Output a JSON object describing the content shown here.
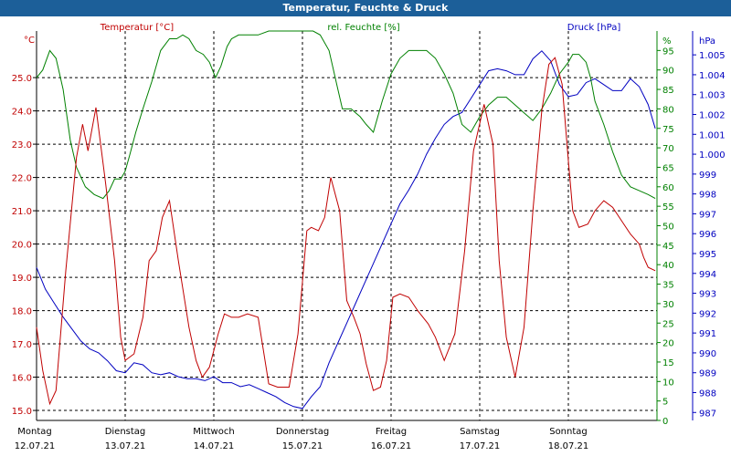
{
  "window": {
    "title": "Temperatur, Feuchte & Druck"
  },
  "chart_data": {
    "type": "line",
    "title": "Temperatur, Feuchte & Druck",
    "grid": true,
    "axes": {
      "temperature": {
        "label": "Temperatur [°C]",
        "unit": "°C",
        "range": [
          14.7,
          26.4
        ],
        "ticks": [
          "15.0",
          "16.0",
          "17.0",
          "18.0",
          "19.0",
          "20.0",
          "21.0",
          "22.0",
          "23.0",
          "24.0",
          "25.0"
        ],
        "color": "#c00000"
      },
      "humidity": {
        "label": "rel. Feuchte [%]",
        "unit": "%",
        "range": [
          0,
          100
        ],
        "ticks": [
          "0",
          "5",
          "10",
          "15",
          "20",
          "25",
          "30",
          "35",
          "40",
          "45",
          "50",
          "55",
          "60",
          "65",
          "70",
          "75",
          "80",
          "85",
          "90",
          "95"
        ],
        "top_tick": "%",
        "color": "#008000"
      },
      "pressure": {
        "label": "Druck [hPa]",
        "unit": "hPa",
        "range": [
          986.6,
          1006.2
        ],
        "ticks": [
          "987",
          "988",
          "989",
          "990",
          "991",
          "992",
          "993",
          "994",
          "995",
          "996",
          "997",
          "998",
          "999",
          "1.000",
          "1.001",
          "1.002",
          "1.003",
          "1.004",
          "1.005"
        ],
        "top_tick": "hPa",
        "color": "#0000c0"
      }
    },
    "x_range": [
      0,
      7
    ],
    "x_ticks": [
      {
        "day": "Montag",
        "date": "12.07.21"
      },
      {
        "day": "Dienstag",
        "date": "13.07.21"
      },
      {
        "day": "Mittwoch",
        "date": "14.07.21"
      },
      {
        "day": "Donnerstag",
        "date": "15.07.21"
      },
      {
        "day": "Freitag",
        "date": "16.07.21"
      },
      {
        "day": "Samstag",
        "date": "17.07.21"
      },
      {
        "day": "Sonntag",
        "date": "18.07.21"
      }
    ],
    "series": [
      {
        "name": "Temperatur [°C]",
        "axis": "temperature",
        "color": "#c00000",
        "x": [
          0,
          0.07,
          0.15,
          0.22,
          0.33,
          0.45,
          0.52,
          0.58,
          0.67,
          0.78,
          0.88,
          0.95,
          1.0,
          1.1,
          1.2,
          1.27,
          1.35,
          1.42,
          1.5,
          1.6,
          1.72,
          1.8,
          1.87,
          1.95,
          2.05,
          2.12,
          2.2,
          2.28,
          2.38,
          2.5,
          2.62,
          2.72,
          2.85,
          2.95,
          3.05,
          3.1,
          3.18,
          3.25,
          3.32,
          3.42,
          3.5,
          3.58,
          3.65,
          3.72,
          3.8,
          3.88,
          3.95,
          4.02,
          4.1,
          4.2,
          4.3,
          4.42,
          4.5,
          4.6,
          4.72,
          4.83,
          4.93,
          5.05,
          5.15,
          5.22,
          5.3,
          5.4,
          5.5,
          5.6,
          5.7,
          5.78,
          5.85,
          5.93,
          6.0,
          6.05,
          6.12,
          6.22,
          6.3,
          6.4,
          6.5,
          6.6,
          6.7,
          6.8,
          6.85,
          6.9,
          6.98
        ],
        "values": [
          17.5,
          16.2,
          15.2,
          15.6,
          19.2,
          22.6,
          23.6,
          22.8,
          24.1,
          21.8,
          19.5,
          17.2,
          16.5,
          16.7,
          17.8,
          19.5,
          19.8,
          20.8,
          21.3,
          19.5,
          17.5,
          16.5,
          16.0,
          16.3,
          17.3,
          17.9,
          17.8,
          17.8,
          17.9,
          17.8,
          15.8,
          15.7,
          15.7,
          17.3,
          20.4,
          20.5,
          20.4,
          20.8,
          22.0,
          21.0,
          18.3,
          17.8,
          17.3,
          16.4,
          15.6,
          15.7,
          16.5,
          18.4,
          18.5,
          18.4,
          18.0,
          17.6,
          17.2,
          16.5,
          17.3,
          19.8,
          22.8,
          24.2,
          23.0,
          19.5,
          17.2,
          16.0,
          17.5,
          21.0,
          24.0,
          25.4,
          25.6,
          24.8,
          22.5,
          21.0,
          20.5,
          20.6,
          21.0,
          21.3,
          21.1,
          20.7,
          20.3,
          20.0,
          19.6,
          19.3,
          19.2
        ]
      },
      {
        "name": "rel. Feuchte [%]",
        "axis": "humidity",
        "color": "#008000",
        "x": [
          0,
          0.07,
          0.15,
          0.22,
          0.3,
          0.38,
          0.45,
          0.55,
          0.65,
          0.75,
          0.82,
          0.88,
          0.95,
          1.0,
          1.05,
          1.12,
          1.2,
          1.3,
          1.4,
          1.5,
          1.58,
          1.65,
          1.72,
          1.8,
          1.88,
          1.95,
          2.02,
          2.08,
          2.15,
          2.2,
          2.28,
          2.38,
          2.5,
          2.62,
          2.72,
          2.85,
          2.95,
          3.05,
          3.12,
          3.2,
          3.3,
          3.4,
          3.45,
          3.55,
          3.6,
          3.65,
          3.72,
          3.8,
          3.9,
          4.0,
          4.1,
          4.2,
          4.3,
          4.4,
          4.5,
          4.6,
          4.7,
          4.8,
          4.9,
          5.0,
          5.1,
          5.2,
          5.3,
          5.4,
          5.5,
          5.6,
          5.7,
          5.8,
          5.9,
          6.0,
          6.05,
          6.12,
          6.2,
          6.25,
          6.3,
          6.4,
          6.5,
          6.6,
          6.7,
          6.8,
          6.9,
          6.98
        ],
        "values": [
          88,
          90,
          95,
          93,
          85,
          72,
          65,
          60,
          58,
          57,
          59,
          62,
          62,
          64,
          68,
          74,
          80,
          87,
          95,
          98,
          98,
          99,
          98,
          95,
          94,
          92,
          88,
          91,
          96,
          98,
          99,
          99,
          99,
          100,
          100,
          100,
          100,
          100,
          100,
          99,
          95,
          85,
          80,
          80,
          79,
          78,
          76,
          74,
          82,
          89,
          93,
          95,
          95,
          95,
          93,
          89,
          84,
          76,
          74,
          78,
          81,
          83,
          83,
          81,
          79,
          77,
          80,
          84,
          89,
          92,
          94,
          94,
          92,
          88,
          82,
          76,
          69,
          63,
          60,
          59,
          58,
          57
        ]
      }
    ],
    "series_note_pressure": "",
    "pressure_series": {
      "name": "Druck [hPa]",
      "axis": "pressure",
      "color": "#0000c0",
      "x": [
        0,
        0.1,
        0.2,
        0.3,
        0.4,
        0.5,
        0.6,
        0.7,
        0.8,
        0.9,
        1.0,
        1.1,
        1.2,
        1.3,
        1.4,
        1.5,
        1.6,
        1.7,
        1.8,
        1.9,
        2.0,
        2.1,
        2.2,
        2.3,
        2.4,
        2.5,
        2.6,
        2.7,
        2.8,
        2.9,
        3.0,
        3.1,
        3.2,
        3.3,
        3.4,
        3.5,
        3.6,
        3.7,
        3.8,
        3.9,
        4.0,
        4.1,
        4.2,
        4.3,
        4.4,
        4.5,
        4.6,
        4.7,
        4.8,
        4.9,
        5.0,
        5.1,
        5.2,
        5.3,
        5.4,
        5.5,
        5.6,
        5.7,
        5.8,
        5.9,
        6.0,
        6.1,
        6.2,
        6.3,
        6.4,
        6.5,
        6.6,
        6.7,
        6.8,
        6.9,
        6.98
      ],
      "values": [
        994.3,
        993.2,
        992.5,
        991.8,
        991.2,
        990.6,
        990.2,
        990.0,
        989.6,
        989.1,
        989.0,
        989.5,
        989.4,
        989.0,
        988.9,
        989.0,
        988.8,
        988.7,
        988.7,
        988.6,
        988.8,
        988.5,
        988.5,
        988.3,
        988.4,
        988.2,
        988.0,
        987.8,
        987.5,
        987.3,
        987.2,
        987.8,
        988.3,
        989.5,
        990.5,
        991.5,
        992.5,
        993.5,
        994.5,
        995.5,
        996.5,
        997.5,
        998.2,
        999.0,
        1000.0,
        1000.8,
        1001.5,
        1001.9,
        1002.1,
        1002.8,
        1003.5,
        1004.2,
        1004.3,
        1004.2,
        1004.0,
        1004.0,
        1004.8,
        1005.2,
        1004.7,
        1003.5,
        1002.9,
        1003.0,
        1003.6,
        1003.8,
        1003.5,
        1003.2,
        1003.2,
        1003.8,
        1003.4,
        1002.5,
        1001.3
      ]
    }
  }
}
